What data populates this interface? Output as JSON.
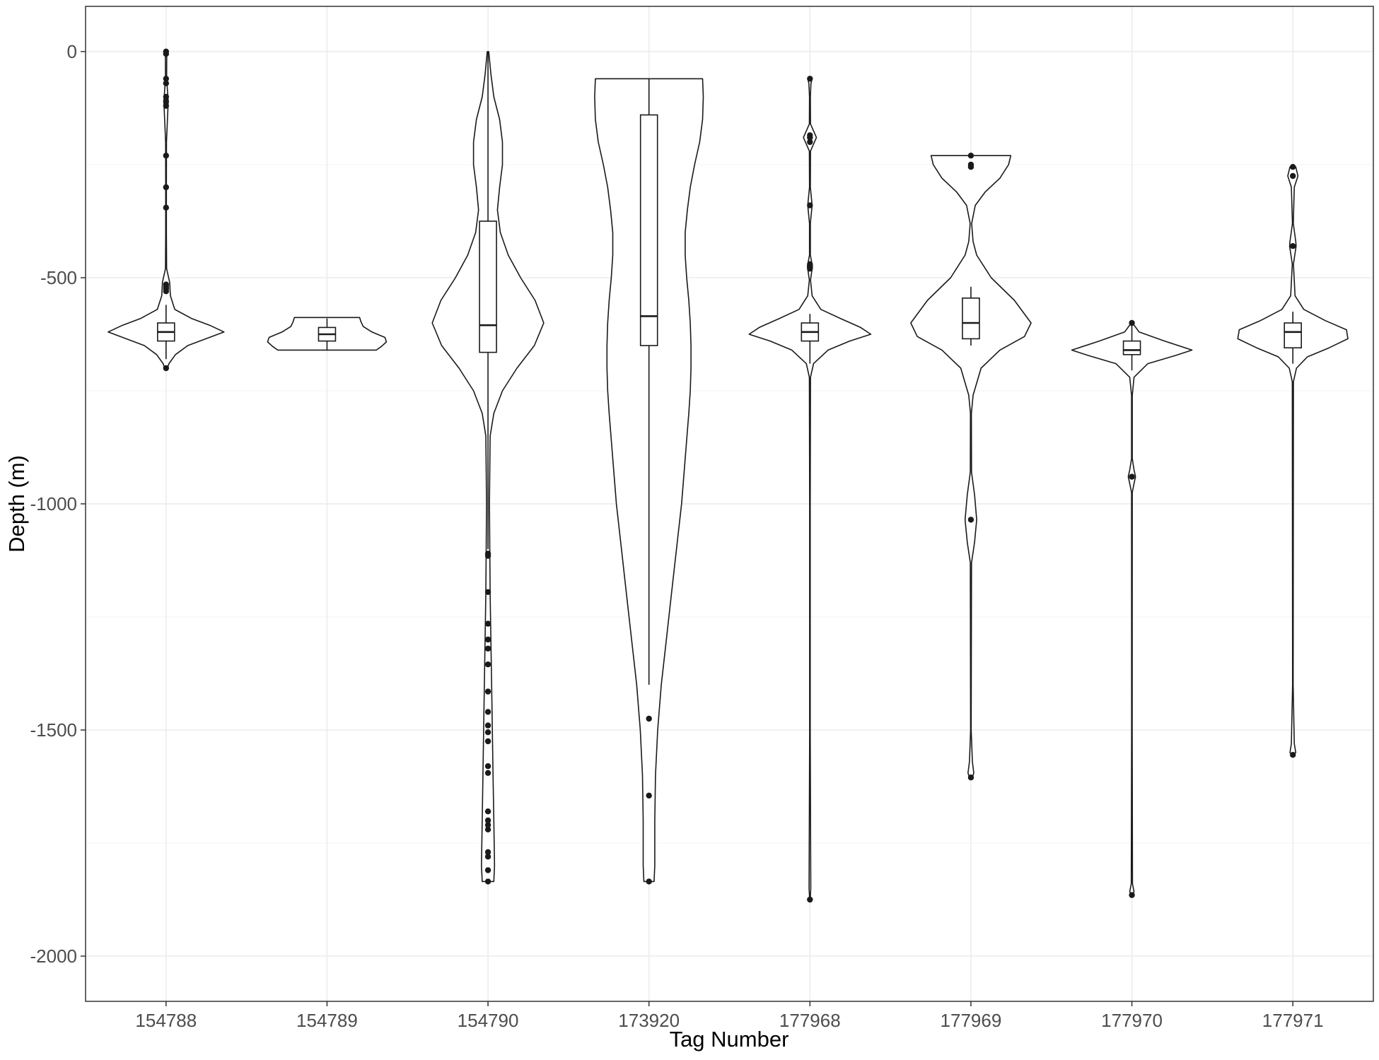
{
  "chart_data": {
    "type": "violin",
    "xlabel": "Tag Number",
    "ylabel": "Depth (m)",
    "ylim": [
      -2100,
      100
    ],
    "yticks": [
      0,
      -500,
      -1000,
      -1500,
      -2000
    ],
    "ytick_labels": [
      "0",
      "-500",
      "-1000",
      "-1500",
      "-2000"
    ],
    "grid": true,
    "legend": "none",
    "colors": {
      "violin_stroke": "#1a1a1a",
      "grid": "#ebebeb",
      "panel_border": "#333333",
      "point": "#1a1a1a"
    },
    "categories": [
      "154788",
      "154789",
      "154790",
      "173920",
      "177968",
      "177969",
      "177970",
      "177971"
    ],
    "series": [
      {
        "tag": "154788",
        "box": {
          "q1": -640,
          "median": -620,
          "q3": -600,
          "whisker_low": -680,
          "whisker_high": -560
        },
        "range": [
          -705,
          0
        ],
        "outliers": [
          0,
          -5,
          -60,
          -70,
          -100,
          -110,
          -120,
          -230,
          -300,
          -345,
          -515,
          -520,
          -525,
          -530,
          -700
        ],
        "density": [
          [
            0,
            0.01
          ],
          [
            -60,
            0.008
          ],
          [
            -110,
            0.03
          ],
          [
            -200,
            0.006
          ],
          [
            -300,
            0.005
          ],
          [
            -400,
            0.005
          ],
          [
            -480,
            0.008
          ],
          [
            -510,
            0.05
          ],
          [
            -540,
            0.06
          ],
          [
            -570,
            0.12
          ],
          [
            -590,
            0.35
          ],
          [
            -605,
            0.6
          ],
          [
            -620,
            0.8
          ],
          [
            -635,
            0.55
          ],
          [
            -650,
            0.3
          ],
          [
            -670,
            0.13
          ],
          [
            -690,
            0.04
          ],
          [
            -705,
            0.008
          ]
        ]
      },
      {
        "tag": "154789",
        "box": {
          "q1": -640,
          "median": -625,
          "q3": -610,
          "whisker_low": -660,
          "whisker_high": -590
        },
        "range": [
          -660,
          -588
        ],
        "outliers": [],
        "density": [
          [
            -588,
            0.45
          ],
          [
            -598,
            0.47
          ],
          [
            -608,
            0.5
          ],
          [
            -620,
            0.62
          ],
          [
            -632,
            0.8
          ],
          [
            -642,
            0.82
          ],
          [
            -652,
            0.75
          ],
          [
            -660,
            0.68
          ]
        ]
      },
      {
        "tag": "154790",
        "box": {
          "q1": -665,
          "median": -605,
          "q3": -375,
          "whisker_low": -1100,
          "whisker_high": 0
        },
        "range": [
          -1835,
          0
        ],
        "outliers": [
          -1110,
          -1115,
          -1195,
          -1265,
          -1300,
          -1320,
          -1355,
          -1415,
          -1460,
          -1490,
          -1505,
          -1525,
          -1580,
          -1595,
          -1680,
          -1700,
          -1710,
          -1720,
          -1770,
          -1780,
          -1810,
          -1835
        ],
        "density": [
          [
            0,
            0.01
          ],
          [
            -50,
            0.04
          ],
          [
            -100,
            0.08
          ],
          [
            -150,
            0.16
          ],
          [
            -200,
            0.2
          ],
          [
            -250,
            0.2
          ],
          [
            -300,
            0.16
          ],
          [
            -350,
            0.13
          ],
          [
            -400,
            0.17
          ],
          [
            -450,
            0.28
          ],
          [
            -500,
            0.45
          ],
          [
            -550,
            0.65
          ],
          [
            -600,
            0.77
          ],
          [
            -650,
            0.64
          ],
          [
            -700,
            0.4
          ],
          [
            -750,
            0.2
          ],
          [
            -800,
            0.08
          ],
          [
            -850,
            0.03
          ],
          [
            -1000,
            0.02
          ],
          [
            -1200,
            0.03
          ],
          [
            -1400,
            0.05
          ],
          [
            -1600,
            0.07
          ],
          [
            -1700,
            0.08
          ],
          [
            -1800,
            0.09
          ],
          [
            -1835,
            0.08
          ]
        ]
      },
      {
        "tag": "173920",
        "box": {
          "q1": -650,
          "median": -585,
          "q3": -140,
          "whisker_low": -1400,
          "whisker_high": -60
        },
        "range": [
          -1835,
          -60
        ],
        "outliers": [
          -1475,
          -1645,
          -1835
        ],
        "density": [
          [
            -60,
            0.74
          ],
          [
            -100,
            0.75
          ],
          [
            -150,
            0.74
          ],
          [
            -200,
            0.7
          ],
          [
            -250,
            0.63
          ],
          [
            -300,
            0.57
          ],
          [
            -350,
            0.53
          ],
          [
            -400,
            0.5
          ],
          [
            -450,
            0.5
          ],
          [
            -500,
            0.52
          ],
          [
            -550,
            0.55
          ],
          [
            -600,
            0.57
          ],
          [
            -650,
            0.58
          ],
          [
            -700,
            0.58
          ],
          [
            -750,
            0.57
          ],
          [
            -800,
            0.55
          ],
          [
            -900,
            0.5
          ],
          [
            -1000,
            0.45
          ],
          [
            -1100,
            0.38
          ],
          [
            -1200,
            0.31
          ],
          [
            -1300,
            0.24
          ],
          [
            -1400,
            0.17
          ],
          [
            -1500,
            0.12
          ],
          [
            -1600,
            0.09
          ],
          [
            -1700,
            0.08
          ],
          [
            -1800,
            0.08
          ],
          [
            -1835,
            0.07
          ]
        ]
      },
      {
        "tag": "177968",
        "box": {
          "q1": -640,
          "median": -620,
          "q3": -600,
          "whisker_low": -690,
          "whisker_high": -580
        },
        "range": [
          -1875,
          -60
        ],
        "outliers": [
          -60,
          -185,
          -190,
          -200,
          -340,
          -470,
          -480,
          -1875
        ],
        "density": [
          [
            -60,
            0.03
          ],
          [
            -70,
            0.015
          ],
          [
            -100,
            0.006
          ],
          [
            -160,
            0.008
          ],
          [
            -190,
            0.09
          ],
          [
            -220,
            0.008
          ],
          [
            -300,
            0.006
          ],
          [
            -340,
            0.03
          ],
          [
            -380,
            0.006
          ],
          [
            -450,
            0.006
          ],
          [
            -475,
            0.035
          ],
          [
            -505,
            0.008
          ],
          [
            -540,
            0.03
          ],
          [
            -570,
            0.15
          ],
          [
            -590,
            0.42
          ],
          [
            -610,
            0.7
          ],
          [
            -625,
            0.84
          ],
          [
            -640,
            0.55
          ],
          [
            -660,
            0.25
          ],
          [
            -690,
            0.05
          ],
          [
            -720,
            0.008
          ],
          [
            -1000,
            0.004
          ],
          [
            -1500,
            0.004
          ],
          [
            -1850,
            0.012
          ],
          [
            -1875,
            0.004
          ]
        ]
      },
      {
        "tag": "177969",
        "box": {
          "q1": -635,
          "median": -600,
          "q3": -545,
          "whisker_low": -650,
          "whisker_high": -520
        },
        "range": [
          -1605,
          -230
        ],
        "outliers": [
          -230,
          -250,
          -255,
          -1035,
          -1605
        ],
        "density": [
          [
            -230,
            0.55
          ],
          [
            -250,
            0.52
          ],
          [
            -280,
            0.4
          ],
          [
            -310,
            0.2
          ],
          [
            -340,
            0.06
          ],
          [
            -380,
            0.01
          ],
          [
            -420,
            0.03
          ],
          [
            -450,
            0.08
          ],
          [
            -500,
            0.28
          ],
          [
            -550,
            0.6
          ],
          [
            -600,
            0.83
          ],
          [
            -630,
            0.74
          ],
          [
            -660,
            0.4
          ],
          [
            -700,
            0.14
          ],
          [
            -760,
            0.03
          ],
          [
            -800,
            0.006
          ],
          [
            -930,
            0.008
          ],
          [
            -980,
            0.05
          ],
          [
            -1035,
            0.08
          ],
          [
            -1085,
            0.05
          ],
          [
            -1130,
            0.008
          ],
          [
            -1500,
            0.004
          ],
          [
            -1570,
            0.02
          ],
          [
            -1595,
            0.04
          ],
          [
            -1605,
            0.02
          ]
        ]
      },
      {
        "tag": "177970",
        "box": {
          "q1": -670,
          "median": -660,
          "q3": -640,
          "whisker_low": -705,
          "whisker_high": -600
        },
        "range": [
          -1865,
          -600
        ],
        "outliers": [
          -600,
          -940,
          -1865
        ],
        "density": [
          [
            -600,
            0.008
          ],
          [
            -620,
            0.1
          ],
          [
            -640,
            0.45
          ],
          [
            -660,
            0.83
          ],
          [
            -672,
            0.6
          ],
          [
            -690,
            0.22
          ],
          [
            -720,
            0.03
          ],
          [
            -760,
            0.005
          ],
          [
            -900,
            0.005
          ],
          [
            -925,
            0.03
          ],
          [
            -940,
            0.05
          ],
          [
            -955,
            0.03
          ],
          [
            -975,
            0.005
          ],
          [
            -1500,
            0.004
          ],
          [
            -1840,
            0.008
          ],
          [
            -1858,
            0.03
          ],
          [
            -1865,
            0.005
          ]
        ]
      },
      {
        "tag": "177971",
        "box": {
          "q1": -655,
          "median": -620,
          "q3": -600,
          "whisker_low": -690,
          "whisker_high": -575
        },
        "range": [
          -1555,
          -255
        ],
        "outliers": [
          -255,
          -275,
          -430,
          -1555
        ],
        "density": [
          [
            -255,
            0.04
          ],
          [
            -275,
            0.07
          ],
          [
            -300,
            0.02
          ],
          [
            -380,
            0.006
          ],
          [
            -420,
            0.04
          ],
          [
            -430,
            0.045
          ],
          [
            -470,
            0.008
          ],
          [
            -540,
            0.03
          ],
          [
            -570,
            0.15
          ],
          [
            -595,
            0.45
          ],
          [
            -615,
            0.74
          ],
          [
            -635,
            0.76
          ],
          [
            -655,
            0.5
          ],
          [
            -675,
            0.2
          ],
          [
            -700,
            0.05
          ],
          [
            -730,
            0.008
          ],
          [
            -1400,
            0.004
          ],
          [
            -1530,
            0.02
          ],
          [
            -1550,
            0.04
          ],
          [
            -1555,
            0.004
          ]
        ]
      }
    ]
  }
}
